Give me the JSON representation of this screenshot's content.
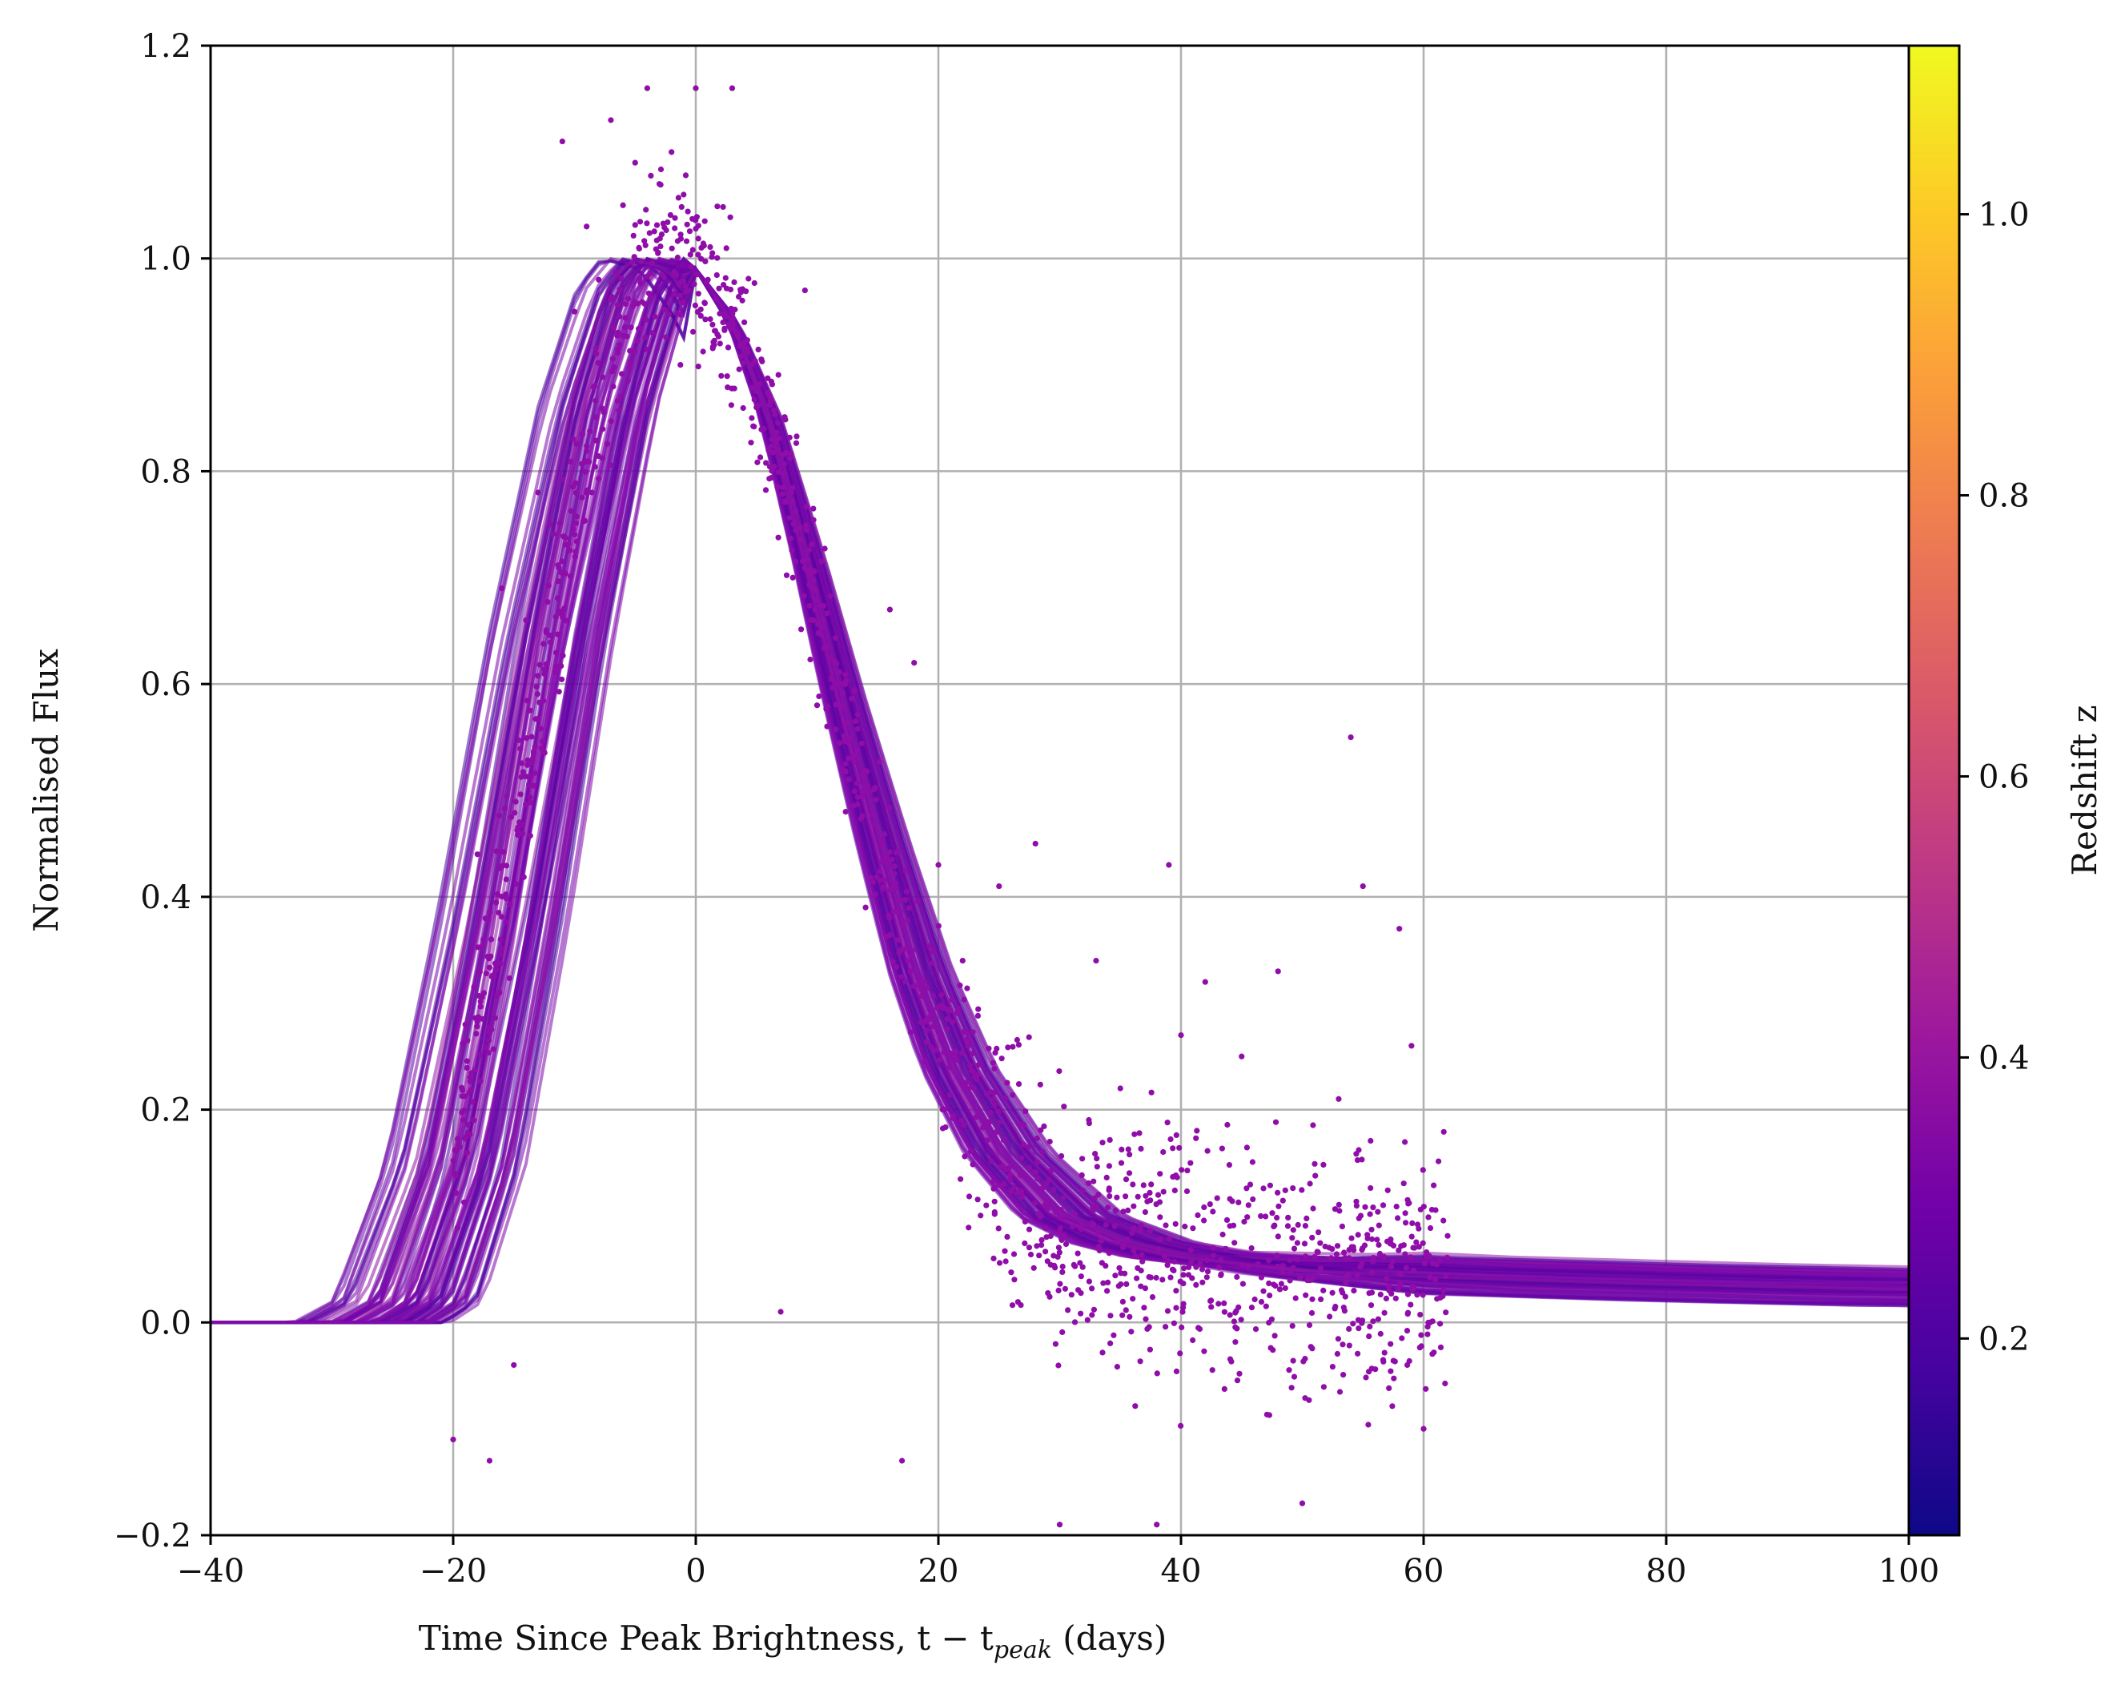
{
  "chart_data": {
    "type": "line",
    "title": "",
    "xlabel": "Time Since Peak Brightness, t − t",
    "xlabel_sub": "peak",
    "xlabel_suffix": " (days)",
    "ylabel": "Normalised Flux",
    "xlim": [
      -40,
      100
    ],
    "ylim": [
      -0.2,
      1.2
    ],
    "grid": true,
    "xticks": [
      -40,
      -20,
      0,
      20,
      40,
      60,
      80,
      100
    ],
    "xtick_labels": [
      "−40",
      "−20",
      "0",
      "20",
      "40",
      "60",
      "80",
      "100"
    ],
    "yticks": [
      -0.2,
      0.0,
      0.2,
      0.4,
      0.6,
      0.8,
      1.0,
      1.2
    ],
    "ytick_labels": [
      "−0.2",
      "0.0",
      "0.2",
      "0.4",
      "0.6",
      "0.8",
      "1.0",
      "1.2"
    ],
    "colorbar": {
      "label": "Redshift z",
      "colormap": "plasma",
      "range": [
        0.06,
        1.12
      ],
      "ticks": [
        0.2,
        0.4,
        0.6,
        0.8,
        1.0
      ],
      "tick_labels": [
        "0.2",
        "0.4",
        "0.6",
        "0.8",
        "1.0"
      ],
      "stops": [
        "#0d0887",
        "#46039f",
        "#7201a8",
        "#9c179e",
        "#bd3786",
        "#d8576b",
        "#ed7953",
        "#fb9f3a",
        "#fdca26",
        "#f0f921"
      ]
    },
    "series": [
      {
        "kind": "model-curve-envelope",
        "color": "#8a10b0",
        "x": [
          -40,
          -27,
          -24,
          -20,
          -16,
          -12,
          -8,
          -5,
          -3,
          0,
          3,
          6,
          9,
          12,
          15,
          18,
          21,
          25,
          30,
          35,
          40,
          50,
          60,
          80,
          100
        ],
        "y": [
          0.0,
          0.0,
          0.02,
          0.15,
          0.38,
          0.64,
          0.86,
          0.97,
          1.0,
          0.99,
          0.94,
          0.85,
          0.72,
          0.58,
          0.45,
          0.33,
          0.24,
          0.16,
          0.1,
          0.075,
          0.062,
          0.05,
          0.044,
          0.037,
          0.032
        ]
      },
      {
        "kind": "observations",
        "color": "#8f0da8",
        "x": [
          -20,
          -19,
          -18,
          -17,
          -16,
          -15,
          -14,
          -13,
          -12,
          -11,
          -10,
          -9,
          -8,
          -7,
          -6,
          -5,
          -4,
          -3,
          -2,
          -1,
          0,
          1,
          2,
          3,
          4,
          5,
          6,
          7,
          8,
          9,
          10,
          12,
          14,
          16,
          17,
          18,
          20,
          22,
          25,
          28,
          30,
          33,
          35,
          38,
          39,
          40,
          42,
          45,
          48,
          50,
          53,
          54,
          55,
          58,
          59,
          60
        ],
        "y": [
          -0.11,
          0.28,
          0.44,
          -0.13,
          0.69,
          -0.04,
          0.66,
          0.78,
          0.75,
          1.11,
          0.95,
          1.03,
          0.98,
          1.13,
          1.05,
          1.09,
          1.16,
          1.07,
          1.1,
          1.06,
          1.16,
          0.98,
          0.92,
          1.16,
          0.94,
          0.86,
          0.82,
          0.01,
          0.7,
          0.97,
          0.58,
          0.52,
          0.39,
          0.67,
          -0.13,
          0.62,
          0.43,
          0.34,
          0.41,
          0.45,
          -0.19,
          0.34,
          0.22,
          -0.19,
          0.43,
          0.27,
          0.32,
          0.25,
          0.33,
          -0.17,
          0.21,
          0.55,
          0.41,
          0.37,
          0.26,
          -0.1
        ]
      }
    ]
  }
}
